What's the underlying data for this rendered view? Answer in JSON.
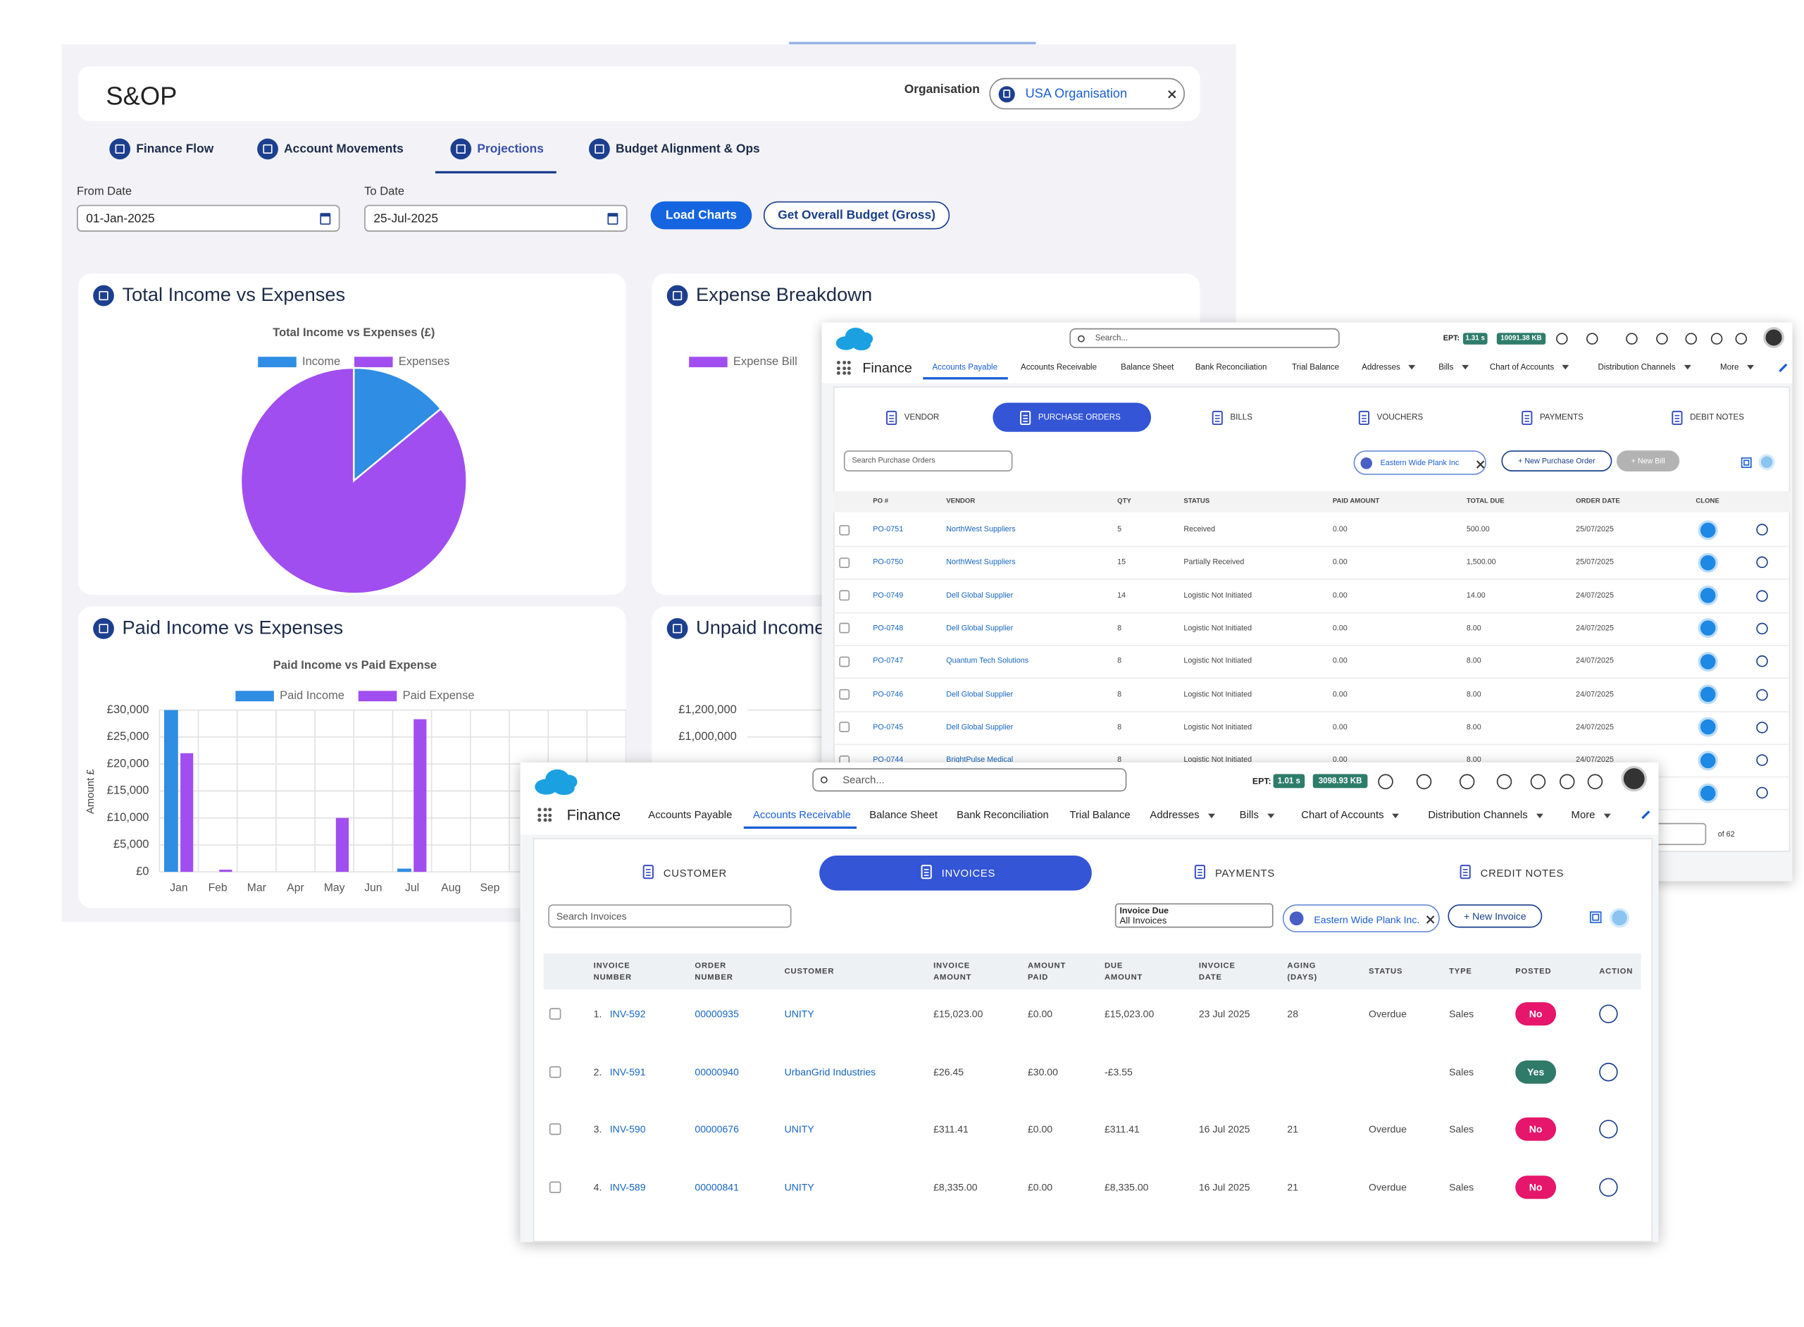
{
  "sop": {
    "title": "S&OP",
    "organisation_label": "Organisation",
    "organisation": "USA Organisation",
    "tabs": [
      "Finance Flow",
      "Account Movements",
      "Projections",
      "Budget Alignment & Ops"
    ],
    "from_date_label": "From Date",
    "from_date": "01-Jan-2025",
    "to_date_label": "To Date",
    "to_date": "25-Jul-2025",
    "buttons": [
      "Load Charts",
      "Get Overall Budget (Gross)"
    ],
    "cards": [
      "Total Income vs Expenses",
      "Expense Breakdown",
      "Paid Income vs Expenses",
      "Unpaid Income"
    ]
  },
  "chart_data": [
    {
      "type": "pie",
      "title": "Total Income vs Expenses (£)",
      "categories": [
        "Income",
        "Expenses"
      ],
      "values": [
        14,
        86
      ],
      "colors": [
        "#2f8de4",
        "#a14ef0"
      ]
    },
    {
      "type": "pie",
      "series": [
        {
          "name": "Expense Bill",
          "color": "#a14ef0"
        }
      ]
    },
    {
      "type": "bar",
      "title": "Paid Income vs Paid Expense",
      "y_label": "Amount £",
      "categories": [
        "Jan",
        "Feb",
        "Mar",
        "Apr",
        "May",
        "Jun",
        "Jul",
        "Aug",
        "Sep"
      ],
      "series": [
        {
          "name": "Paid Income",
          "color": "#2f8de4",
          "values": [
            30000,
            0,
            0,
            0,
            0,
            0,
            600,
            0,
            0
          ]
        },
        {
          "name": "Paid Expense",
          "color": "#a14ef0",
          "values": [
            22000,
            400,
            0,
            0,
            10000,
            0,
            28300,
            0,
            0
          ]
        }
      ],
      "ylim": [
        0,
        30000
      ],
      "yticks": [
        {
          "value": 0,
          "label": "£0"
        },
        {
          "value": 5000,
          "label": "£5,000"
        },
        {
          "value": 10000,
          "label": "£10,000"
        },
        {
          "value": 15000,
          "label": "£15,000"
        },
        {
          "value": 20000,
          "label": "£20,000"
        },
        {
          "value": 25000,
          "label": "£25,000"
        },
        {
          "value": 30000,
          "label": "£30,000"
        }
      ],
      "grid": true
    },
    {
      "type": "bar",
      "ylim": [
        0,
        1200000
      ],
      "yticks": [
        {
          "value": 1000000,
          "label": "£1,000,000"
        },
        {
          "value": 1200000,
          "label": "£1,200,000"
        }
      ],
      "grid": true
    }
  ],
  "payables": {
    "search": "Search...",
    "ept_label": "EPT:",
    "ept_time": "1.31 s",
    "ept_size": "10091.38 KB",
    "app": "Finance",
    "nav": [
      "Accounts Payable",
      "Accounts Receivable",
      "Balance Sheet",
      "Bank Reconciliation",
      "Trial Balance",
      "Addresses",
      "Bills",
      "Chart of Accounts",
      "Distribution Channels",
      "More"
    ],
    "subtabs": [
      "VENDOR",
      "PURCHASE ORDERS",
      "BILLS",
      "VOUCHERS",
      "PAYMENTS",
      "DEBIT NOTES"
    ],
    "search_orders": "Search Purchase Orders",
    "filter": "Eastern Wide Plank Inc",
    "new_order": "+ New Purchase Order",
    "new_bill": "+ New Bill",
    "columns": [
      "PO #",
      "VENDOR",
      "QTY",
      "STATUS",
      "PAID AMOUNT",
      "TOTAL DUE",
      "ORDER DATE",
      "CLONE"
    ],
    "rows": [
      [
        "PO-0751",
        "NorthWest Suppliers",
        "5",
        "Received",
        "0.00",
        "500.00",
        "25/07/2025"
      ],
      [
        "PO-0750",
        "NorthWest Suppliers",
        "15",
        "Partially Received",
        "0.00",
        "1,500.00",
        "25/07/2025"
      ],
      [
        "PO-0749",
        "Dell Global Supplier",
        "14",
        "Logistic Not Initiated",
        "0.00",
        "14.00",
        "24/07/2025"
      ],
      [
        "PO-0748",
        "Dell Global Supplier",
        "8",
        "Logistic Not Initiated",
        "0.00",
        "8.00",
        "24/07/2025"
      ],
      [
        "PO-0747",
        "Quantum Tech Solutions",
        "8",
        "Logistic Not Initiated",
        "0.00",
        "8.00",
        "24/07/2025"
      ],
      [
        "PO-0746",
        "Dell Global Supplier",
        "8",
        "Logistic Not Initiated",
        "0.00",
        "8.00",
        "24/07/2025"
      ],
      [
        "PO-0745",
        "Dell Global Supplier",
        "8",
        "Logistic Not Initiated",
        "0.00",
        "8.00",
        "24/07/2025"
      ],
      [
        "PO-0744",
        "BrightPulse Medical",
        "8",
        "Logistic Not Initiated",
        "0.00",
        "8.00",
        "24/07/2025"
      ]
    ],
    "pagination": "of 62"
  },
  "receivables": {
    "search": "Search...",
    "ept_label": "EPT:",
    "ept_time": "1.01 s",
    "ept_size": "3098.93 KB",
    "app": "Finance",
    "nav": [
      "Accounts Payable",
      "Accounts Receivable",
      "Balance Sheet",
      "Bank Reconciliation",
      "Trial Balance",
      "Addresses",
      "Bills",
      "Chart of Accounts",
      "Distribution Channels",
      "More"
    ],
    "subtabs": [
      "CUSTOMER",
      "INVOICES",
      "PAYMENTS",
      "CREDIT NOTES"
    ],
    "search_invoices": "Search Invoices",
    "due_label": "Invoice Due",
    "due_value": "All Invoices",
    "filter": "Eastern Wide Plank Inc.",
    "new_invoice": "+ New Invoice",
    "columns": [
      "INVOICE NUMBER",
      "ORDER NUMBER",
      "CUSTOMER",
      "INVOICE AMOUNT",
      "AMOUNT PAID",
      "DUE AMOUNT",
      "INVOICE DATE",
      "AGING (DAYS)",
      "STATUS",
      "TYPE",
      "POSTED",
      "ACTION"
    ],
    "rows": [
      [
        "1.",
        "INV-592",
        "00000935",
        "UNITY",
        "£15,023.00",
        "£0.00",
        "£15,023.00",
        "23 Jul 2025",
        "28",
        "Overdue",
        "Sales",
        "No"
      ],
      [
        "2.",
        "INV-591",
        "00000940",
        "UrbanGrid Industries",
        "£26.45",
        "£30.00",
        "-£3.55",
        null,
        null,
        null,
        "Sales",
        "Yes"
      ],
      [
        "3.",
        "INV-590",
        "00000676",
        "UNITY",
        "£311.41",
        "£0.00",
        "£311.41",
        "16 Jul 2025",
        "21",
        "Overdue",
        "Sales",
        "No"
      ],
      [
        "4.",
        "INV-589",
        "00000841",
        "UNITY",
        "£8,335.00",
        "£0.00",
        "£8,335.00",
        "16 Jul 2025",
        "21",
        "Overdue",
        "Sales",
        "No"
      ]
    ],
    "posted_colors": [
      "#e5166b",
      "#2f7a68",
      "#e5166b",
      "#e5166b"
    ]
  }
}
